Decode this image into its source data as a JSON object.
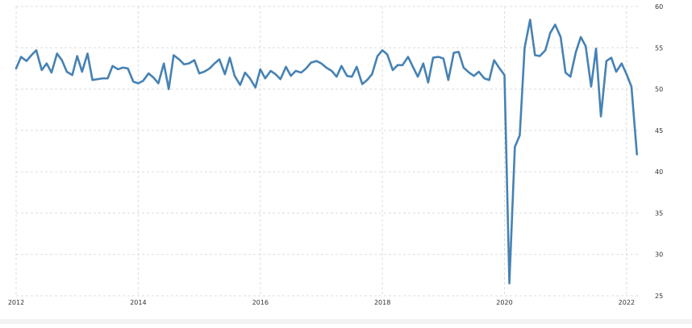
{
  "chart_data": {
    "type": "line",
    "title": "",
    "xlabel": "",
    "ylabel": "",
    "ylim": [
      25,
      60
    ],
    "yticks": [
      25,
      30,
      35,
      40,
      45,
      50,
      55,
      60
    ],
    "xlim": [
      2012,
      2022.2
    ],
    "xticks": [
      2012,
      2014,
      2016,
      2018,
      2020,
      2022
    ],
    "xtick_labels": [
      "2012",
      "2014",
      "2016",
      "2018",
      "2020",
      "2022"
    ],
    "y_axis_side": "right",
    "grid": true,
    "color": "#4682b4",
    "series": [
      {
        "x": [
          2012.0,
          2012.08,
          2012.17,
          2012.25,
          2012.33,
          2012.42,
          2012.5,
          2012.58,
          2012.67,
          2012.75,
          2012.83,
          2012.92,
          2013.0,
          2013.08,
          2013.17,
          2013.25,
          2013.33,
          2013.42,
          2013.5,
          2013.58,
          2013.67,
          2013.75,
          2013.83,
          2013.92,
          2014.0,
          2014.08,
          2014.17,
          2014.25,
          2014.33,
          2014.42,
          2014.5,
          2014.58,
          2014.67,
          2014.75,
          2014.83,
          2014.92,
          2015.0,
          2015.08,
          2015.17,
          2015.25,
          2015.33,
          2015.42,
          2015.5,
          2015.58,
          2015.67,
          2015.75,
          2015.83,
          2015.92,
          2016.0,
          2016.08,
          2016.17,
          2016.25,
          2016.33,
          2016.42,
          2016.5,
          2016.58,
          2016.67,
          2016.75,
          2016.83,
          2016.92,
          2017.0,
          2017.08,
          2017.17,
          2017.25,
          2017.33,
          2017.42,
          2017.5,
          2017.58,
          2017.67,
          2017.75,
          2017.83,
          2017.92,
          2018.0,
          2018.08,
          2018.17,
          2018.25,
          2018.33,
          2018.42,
          2018.5,
          2018.58,
          2018.67,
          2018.75,
          2018.83,
          2018.92,
          2019.0,
          2019.08,
          2019.17,
          2019.25,
          2019.33,
          2019.42,
          2019.5,
          2019.58,
          2019.67,
          2019.75,
          2019.83,
          2019.92,
          2020.0,
          2020.08,
          2020.17,
          2020.25,
          2020.33,
          2020.42,
          2020.5,
          2020.58,
          2020.67,
          2020.75,
          2020.83,
          2020.92,
          2021.0,
          2021.08,
          2021.17,
          2021.25,
          2021.33,
          2021.42,
          2021.5,
          2021.58,
          2021.67,
          2021.75,
          2021.83,
          2021.92,
          2022.0,
          2022.08,
          2022.17
        ],
        "y": [
          52.5,
          53.9,
          53.4,
          54.1,
          54.7,
          52.3,
          53.1,
          52.0,
          54.3,
          53.5,
          52.1,
          51.7,
          54.0,
          52.1,
          54.3,
          51.1,
          51.2,
          51.3,
          51.3,
          52.8,
          52.4,
          52.6,
          52.5,
          50.9,
          50.7,
          51.0,
          51.9,
          51.4,
          50.7,
          53.1,
          50.0,
          54.1,
          53.6,
          53.0,
          53.1,
          53.5,
          51.9,
          52.1,
          52.5,
          53.1,
          53.6,
          51.8,
          53.8,
          51.6,
          50.5,
          52.0,
          51.3,
          50.2,
          52.4,
          51.3,
          52.2,
          51.8,
          51.2,
          52.7,
          51.6,
          52.2,
          52.0,
          52.5,
          53.2,
          53.4,
          53.1,
          52.6,
          52.2,
          51.5,
          52.8,
          51.6,
          51.5,
          52.7,
          50.6,
          51.1,
          51.8,
          54.0,
          54.7,
          54.2,
          52.3,
          52.9,
          52.9,
          53.9,
          52.7,
          51.5,
          53.1,
          50.8,
          53.8,
          53.9,
          53.7,
          51.1,
          54.4,
          54.5,
          52.6,
          52.0,
          51.6,
          52.1,
          51.3,
          51.1,
          53.5,
          52.5,
          51.7,
          26.5,
          43.0,
          44.4,
          55.0,
          58.4,
          54.1,
          54.0,
          54.7,
          56.8,
          57.8,
          56.3,
          52.0,
          51.5,
          54.5,
          56.3,
          55.2,
          50.3,
          54.9,
          46.7,
          53.4,
          53.8,
          52.1,
          53.1,
          51.8,
          50.3,
          42.1
        ]
      }
    ]
  }
}
